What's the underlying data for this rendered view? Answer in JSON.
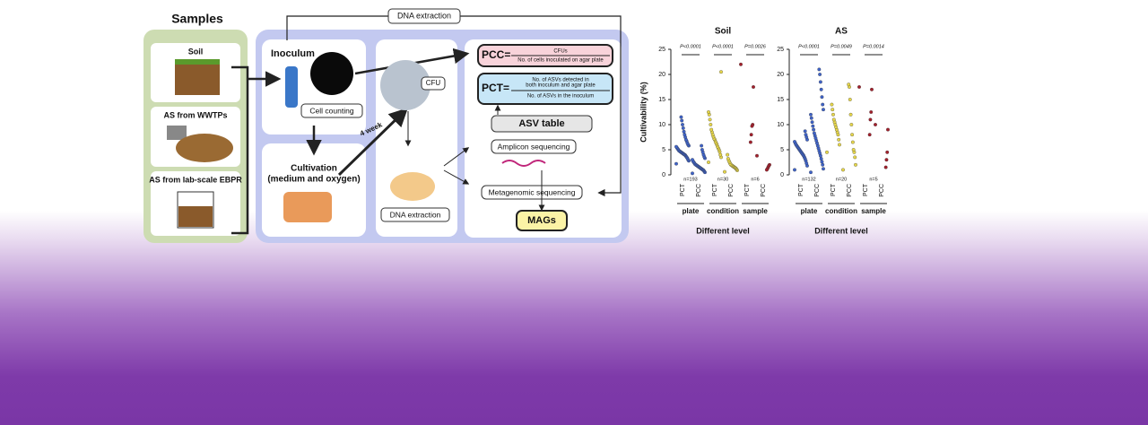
{
  "diagram": {
    "samples_title": "Samples",
    "samples": [
      "Soil",
      "AS from WWTPs",
      "AS from lab-scale EBPR"
    ],
    "dna_extraction_top": "DNA extraction",
    "inoculum": "Inoculum",
    "cell_counting": "Cell counting",
    "cultivation": [
      "Cultivation",
      "(medium and oxygen)"
    ],
    "four_week": "4 week",
    "cfu": "CFU",
    "dna_extraction": "DNA extraction",
    "pcc_label": "PCC=",
    "pcc_num": "CFUs",
    "pcc_den": "No. of cells inoculated on agar plate",
    "pct_label": "PCT=",
    "pct_num": [
      "No. of ASVs detected in",
      "both inoculum and agar plate"
    ],
    "pct_den": "No. of ASVs in the inoculum",
    "asv_table": "ASV table",
    "amplicon": "Amplicon sequencing",
    "metagenomic": "Metagenomic sequencing",
    "mags": "MAGs"
  },
  "chart_data": [
    {
      "type": "strip",
      "title": "Soil",
      "ylabel": "Cultivability (%)",
      "xlabel": "Different level",
      "ylim": [
        0,
        25
      ],
      "yticks": [
        0,
        5,
        10,
        15,
        20,
        25
      ],
      "groups": [
        {
          "name": "plate",
          "color": "#3f63c8",
          "p": "P<0.0001",
          "n": "n=193",
          "categories": [
            "PCT",
            "PCC"
          ],
          "values": [
            [
              2.2,
              2.8,
              3,
              3.3,
              3.5,
              3.7,
              3.9,
              4,
              4.1,
              4.2,
              4.3,
              4.4,
              4.5,
              4.6,
              4.7,
              4.8,
              5,
              5.2,
              5.4,
              5.6,
              5.8,
              6,
              6.3,
              6.7,
              7,
              7.5,
              8,
              8.6,
              9.3,
              10,
              10.8,
              11.5
            ],
            [
              0.3,
              0.5,
              0.7,
              0.9,
              1,
              1.1,
              1.2,
              1.3,
              1.4,
              1.5,
              1.6,
              1.7,
              1.8,
              1.9,
              2,
              2.1,
              2.3,
              2.5,
              2.7,
              3,
              3.3,
              3.6,
              4,
              4.5,
              5,
              5.8
            ]
          ]
        },
        {
          "name": "condition",
          "color": "#e6d64a",
          "p": "P<0.0001",
          "n": "n=30",
          "categories": [
            "PCT",
            "PCC"
          ],
          "values": [
            [
              2.5,
              3.5,
              4,
              4.6,
              5,
              5.3,
              5.6,
              6,
              6.3,
              6.6,
              7,
              7.2,
              7.6,
              8,
              8.5,
              9,
              10,
              11,
              12,
              12.5,
              20.5
            ],
            [
              0.6,
              0.9,
              1.1,
              1.3,
              1.4,
              1.5,
              1.6,
              1.7,
              1.8,
              1.9,
              2,
              2.2,
              2.5,
              2.8,
              3.2,
              4
            ]
          ]
        },
        {
          "name": "sample",
          "color": "#a3202c",
          "p": "P=0.0026",
          "n": "n=6",
          "categories": [
            "PCT",
            "PCC"
          ],
          "values": [
            [
              22,
              17.5,
              10,
              9.7,
              8,
              6.5
            ],
            [
              3.8,
              2,
              1.8,
              1.5,
              1.2,
              1
            ]
          ]
        }
      ]
    },
    {
      "type": "strip",
      "title": "AS",
      "xlabel": "Different level",
      "ylim": [
        0,
        25
      ],
      "yticks": [
        0,
        5,
        10,
        15,
        20,
        25
      ],
      "groups": [
        {
          "name": "plate",
          "color": "#3f63c8",
          "p": "P<0.0001",
          "n": "n=132",
          "categories": [
            "PCT",
            "PCC"
          ],
          "values": [
            [
              1,
              1.8,
              2.3,
              2.8,
              3.2,
              3.5,
              3.8,
              4,
              4.2,
              4.4,
              4.6,
              4.8,
              5,
              5.2,
              5.4,
              5.6,
              5.8,
              6,
              6.3,
              6.6,
              7,
              7.5,
              8,
              8.7
            ],
            [
              0.5,
              1.2,
              2,
              2.6,
              3.2,
              3.8,
              4.3,
              4.8,
              5.3,
              5.8,
              6.3,
              6.8,
              7.3,
              7.8,
              8.3,
              9,
              9.7,
              10.5,
              11.3,
              12,
              13,
              14,
              15.5,
              17,
              18.5,
              20,
              21
            ]
          ]
        },
        {
          "name": "condition",
          "color": "#e6d64a",
          "p": "P=0.0049",
          "n": "n=20",
          "categories": [
            "PCT",
            "PCC"
          ],
          "values": [
            [
              4.5,
              6,
              7,
              8,
              8.5,
              9,
              9.5,
              10,
              10.5,
              11,
              12,
              13,
              14
            ],
            [
              1,
              2,
              3.5,
              4.5,
              5,
              6.5,
              8,
              10,
              12,
              15,
              17.5,
              18
            ]
          ]
        },
        {
          "name": "sample",
          "color": "#a3202c",
          "p": "P=0.0014",
          "n": "n=5",
          "categories": [
            "PCT",
            "PCC"
          ],
          "values": [
            [
              17.5,
              17,
              12.5,
              11,
              8
            ],
            [
              10,
              9,
              4.5,
              3,
              1.5
            ]
          ]
        }
      ]
    }
  ]
}
